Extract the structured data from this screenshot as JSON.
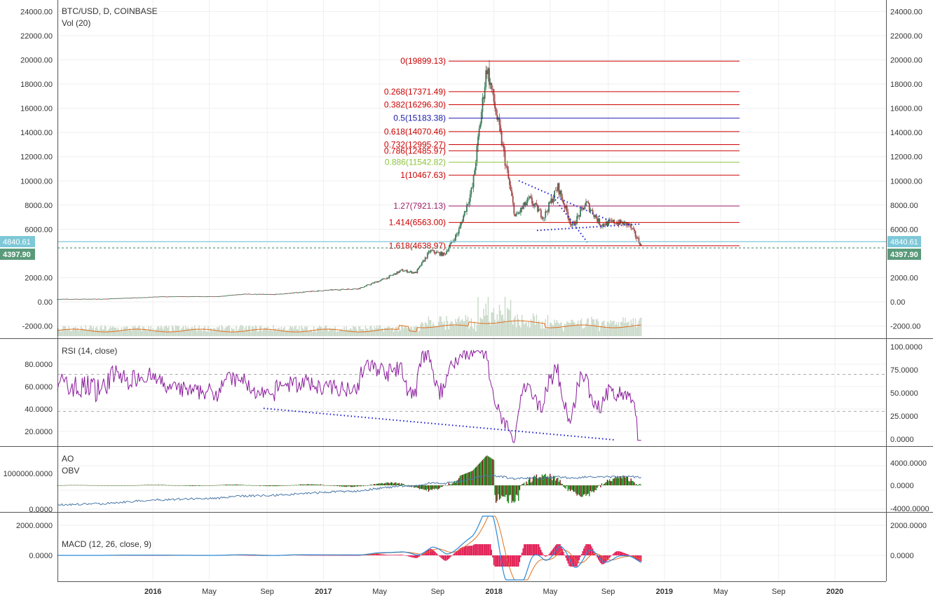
{
  "header": {
    "symbol": "BTC/USD, D, COINBASE",
    "volume": "Vol (20)"
  },
  "panes": {
    "rsi_label": "RSI (14, close)",
    "ao_label": "AO",
    "obv_label": "OBV",
    "macd_label": "MACD (12, 26, close, 9)"
  },
  "price_badges": {
    "current": "4840.61",
    "last": "4397.90"
  },
  "colors": {
    "fib_red": "#cc0000",
    "fib_blue": "#1a1aaa",
    "fib_green": "#8cc43c",
    "fib_magenta": "#a0206a",
    "rsi": "#8a1a9c",
    "trend_dots": "#1a1ad0",
    "obv": "#4a78a8",
    "ao_up": "#1a8a1a",
    "ao_down": "#7a1010",
    "macd": "#2a8ad8",
    "signal": "#e07020",
    "hist": "#e0104a",
    "badge_cyan": "#7ec8d8",
    "badge_green": "#5a9a7a"
  },
  "chart_data": {
    "type": "candlestick",
    "title": "BTC/USD, D, COINBASE",
    "x_tick_labels": [
      "2016",
      "May",
      "Sep",
      "2017",
      "May",
      "Sep",
      "2018",
      "May",
      "Sep",
      "2019",
      "May",
      "Sep",
      "2020"
    ],
    "price_axis": {
      "ticks": [
        "24000.00",
        "22000.00",
        "20000.00",
        "18000.00",
        "16000.00",
        "14000.00",
        "12000.00",
        "10000.00",
        "8000.00",
        "6000.00",
        "2000.00",
        "0.00",
        "-2000.00"
      ],
      "ticks_right": [
        "24000.00",
        "22000.00",
        "20000.00",
        "18000.00",
        "16000.00",
        "14000.00",
        "12000.00",
        "10000.00",
        "8000.00",
        "6000.00",
        "2000.00",
        "0.00",
        "-2000.00"
      ],
      "range": [
        -2000,
        24000
      ]
    },
    "fibonacci_levels": [
      {
        "label": "0(19899.13)",
        "value": 19899.13,
        "color": "red"
      },
      {
        "label": "0.268(17371.49)",
        "value": 17371.49,
        "color": "red"
      },
      {
        "label": "0.382(16296.30)",
        "value": 16296.3,
        "color": "red"
      },
      {
        "label": "0.5(15183.38)",
        "value": 15183.38,
        "color": "blue"
      },
      {
        "label": "0.618(14070.46)",
        "value": 14070.46,
        "color": "red"
      },
      {
        "label": "0.732(12995.27)",
        "value": 12995.27,
        "color": "red"
      },
      {
        "label": "0.786(12485.97)",
        "value": 12485.97,
        "color": "red"
      },
      {
        "label": "0.886(11542.82)",
        "value": 11542.82,
        "color": "green"
      },
      {
        "label": "1(10467.63)",
        "value": 10467.63,
        "color": "red"
      },
      {
        "label": "1.27(7921.13)",
        "value": 7921.13,
        "color": "magenta"
      },
      {
        "label": "1.414(6563.00)",
        "value": 6563.0,
        "color": "red"
      },
      {
        "label": "1.618(4638.97)",
        "value": 4638.97,
        "color": "red"
      }
    ],
    "price_series": [
      {
        "date": "2015-06",
        "value": 230
      },
      {
        "date": "2015-09",
        "value": 240
      },
      {
        "date": "2016-01",
        "value": 430
      },
      {
        "date": "2016-05",
        "value": 450
      },
      {
        "date": "2016-07",
        "value": 650
      },
      {
        "date": "2016-09",
        "value": 610
      },
      {
        "date": "2016-12",
        "value": 900
      },
      {
        "date": "2017-01",
        "value": 980
      },
      {
        "date": "2017-03",
        "value": 1100
      },
      {
        "date": "2017-05",
        "value": 2000
      },
      {
        "date": "2017-06",
        "value": 2600
      },
      {
        "date": "2017-07",
        "value": 2400
      },
      {
        "date": "2017-08",
        "value": 4200
      },
      {
        "date": "2017-09",
        "value": 3900
      },
      {
        "date": "2017-10",
        "value": 5800
      },
      {
        "date": "2017-11",
        "value": 9500
      },
      {
        "date": "2017-12",
        "value": 19500
      },
      {
        "date": "2018-01",
        "value": 13500
      },
      {
        "date": "2018-02",
        "value": 7000
      },
      {
        "date": "2018-03",
        "value": 8500
      },
      {
        "date": "2018-04",
        "value": 7000
      },
      {
        "date": "2018-05",
        "value": 9500
      },
      {
        "date": "2018-06",
        "value": 6200
      },
      {
        "date": "2018-07",
        "value": 8200
      },
      {
        "date": "2018-08",
        "value": 6400
      },
      {
        "date": "2018-09",
        "value": 6600
      },
      {
        "date": "2018-10",
        "value": 6400
      },
      {
        "date": "2018-11",
        "value": 4400
      }
    ],
    "rsi": {
      "label": "RSI (14, close)",
      "ticks_left": [
        "80.0000",
        "60.0000",
        "40.0000",
        "20.0000"
      ],
      "ticks_right": [
        "100.0000",
        "75.0000",
        "50.0000",
        "25.0000",
        "0.0000"
      ],
      "bands": [
        70,
        30
      ]
    },
    "ao_obv": {
      "ticks_left": [
        "1000000.0000",
        "0.0000"
      ],
      "ticks_right": [
        "4000.0000",
        "0.0000",
        "-4000.0000"
      ]
    },
    "macd": {
      "label": "MACD (12, 26, close, 9)",
      "ticks_left": [
        "2000.0000",
        "0.0000"
      ],
      "ticks_right": [
        "2000.0000",
        "0.0000"
      ]
    }
  }
}
